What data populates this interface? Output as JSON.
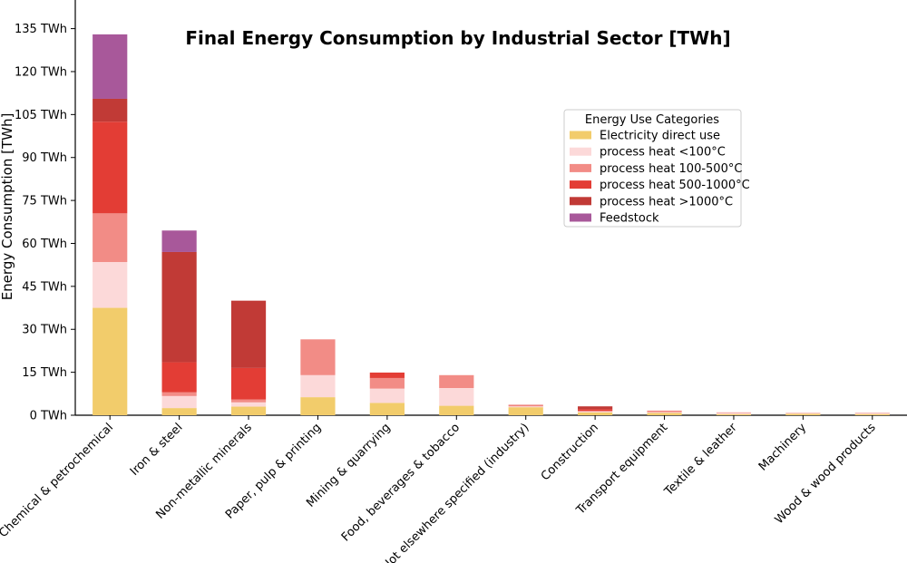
{
  "chart_data": {
    "type": "bar",
    "stacked": true,
    "title": "Final Energy Consumption by Industrial Sector [TWh]",
    "xlabel": "",
    "ylabel": "Energy Consumption [TWh]",
    "ylim": [
      0,
      145
    ],
    "yticks": [
      0,
      15,
      30,
      45,
      60,
      75,
      90,
      105,
      120,
      135
    ],
    "ytick_labels": [
      "0 TWh",
      "15 TWh",
      "30 TWh",
      "45 TWh",
      "60 TWh",
      "75 TWh",
      "90 TWh",
      "105 TWh",
      "120 TWh",
      "135 TWh"
    ],
    "grid": false,
    "legend": {
      "title": "Energy Use Categories",
      "placement": "upper-right"
    },
    "categories": [
      "Chemical & petrochemical",
      "Iron & steel",
      "Non-metallic minerals",
      "Paper, pulp & printing",
      "Mining & quarrying",
      "Food, beverages & tobacco",
      "Not elsewhere specified (industry)",
      "Construction",
      "Transport equipment",
      "Textile & leather",
      "Machinery",
      "Wood & wood products"
    ],
    "series": [
      {
        "name": "Electricity direct use",
        "color": "#f2cc6b",
        "values": [
          37.5,
          2.5,
          3.0,
          6.3,
          4.3,
          3.3,
          2.8,
          1.0,
          0.8,
          0.4,
          0.5,
          0.4
        ]
      },
      {
        "name": "process heat <100°C",
        "color": "#fcd9d9",
        "values": [
          16.0,
          4.2,
          1.5,
          7.7,
          5.0,
          6.2,
          0.3,
          0.3,
          0.3,
          0.4,
          0.3,
          0.2
        ]
      },
      {
        "name": "process heat 100-500°C",
        "color": "#f28c86",
        "values": [
          17.0,
          1.3,
          1.0,
          12.5,
          3.7,
          4.5,
          0.3,
          0.2,
          0.4,
          0.2,
          0.1,
          0.2
        ]
      },
      {
        "name": "process heat 500-1000°C",
        "color": "#e33d35",
        "values": [
          32.0,
          10.5,
          11.0,
          0.0,
          1.9,
          0.0,
          0.2,
          0.6,
          0.1,
          0.0,
          0.0,
          0.0
        ]
      },
      {
        "name": "process heat >1000°C",
        "color": "#c13a36",
        "values": [
          8.0,
          38.5,
          23.5,
          0.0,
          0.0,
          0.0,
          0.0,
          1.0,
          0.0,
          0.0,
          0.0,
          0.0
        ]
      },
      {
        "name": "Feedstock",
        "color": "#a8589a",
        "values": [
          22.5,
          7.5,
          0.0,
          0.0,
          0.0,
          0.0,
          0.0,
          0.0,
          0.0,
          0.0,
          0.0,
          0.0
        ]
      }
    ]
  }
}
